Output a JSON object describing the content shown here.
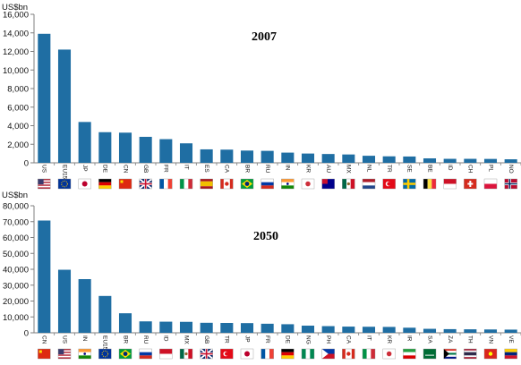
{
  "colors": {
    "bar": "#1f6ea3",
    "axis": "#7f7f7f"
  },
  "chart_data": [
    {
      "type": "bar",
      "title": "2007",
      "ylabel": "US$bn",
      "ylim": [
        0,
        16000
      ],
      "yticks": [
        "0",
        "2,000",
        "4,000",
        "6,000",
        "8,000",
        "10,000",
        "12,000",
        "14,000",
        "16,000"
      ],
      "categories": [
        "US",
        "EU15",
        "JP",
        "DE",
        "CN",
        "GB",
        "FR",
        "IT",
        "ES",
        "CA",
        "BR",
        "RU",
        "IN",
        "KR",
        "AU",
        "MX",
        "NL",
        "TR",
        "SE",
        "BE",
        "ID",
        "CH",
        "PL",
        "NO"
      ],
      "values": [
        13900,
        12200,
        4400,
        3300,
        3250,
        2800,
        2550,
        2100,
        1450,
        1420,
        1320,
        1290,
        1100,
        1000,
        950,
        900,
        760,
        700,
        680,
        480,
        430,
        430,
        420,
        380
      ]
    },
    {
      "type": "bar",
      "title": "2050",
      "ylabel": "US$bn",
      "ylim": [
        0,
        80000
      ],
      "yticks": [
        "0",
        "10,000",
        "20,000",
        "30,000",
        "40,000",
        "50,000",
        "60,000",
        "70,000",
        "80,000"
      ],
      "categories": [
        "CN",
        "US",
        "IN",
        "EU15",
        "BR",
        "RU",
        "ID",
        "MX",
        "GB",
        "TR",
        "JP",
        "FR",
        "DE",
        "NG",
        "PH",
        "CA",
        "IT",
        "KR",
        "IR",
        "SA",
        "ZA",
        "TH",
        "VN",
        "VE"
      ],
      "values": [
        70700,
        39700,
        33800,
        23200,
        12300,
        7200,
        7000,
        6900,
        6300,
        6200,
        6100,
        5700,
        5400,
        4500,
        4200,
        3900,
        3800,
        3700,
        3200,
        2500,
        2300,
        2200,
        2100,
        2000
      ]
    }
  ]
}
